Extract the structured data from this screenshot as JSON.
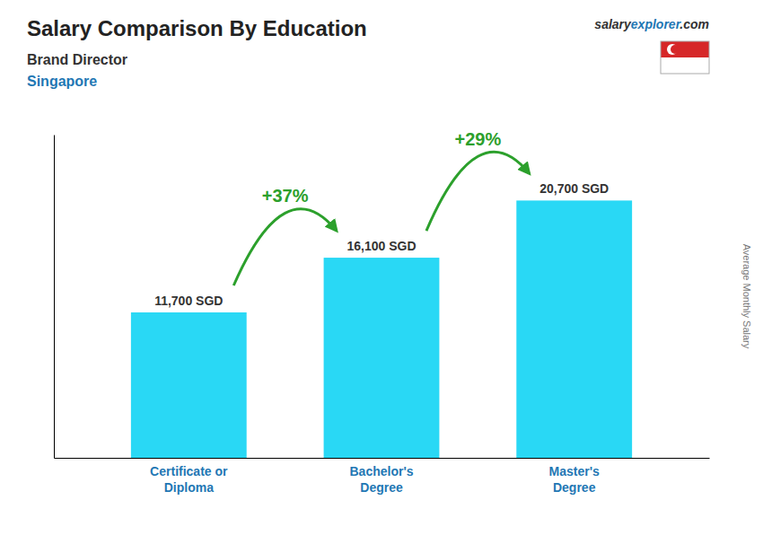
{
  "chart_data": {
    "type": "bar",
    "title": "Salary Comparison By Education",
    "subtitle": [
      "Brand Director",
      "Singapore"
    ],
    "source": [
      "salary",
      "explorer",
      ".com"
    ],
    "y_label": "Average Monthly Salary",
    "categories": [
      "Certificate or\nDiploma",
      "Bachelor's\nDegree",
      "Master's\nDegree"
    ],
    "values": [
      11700,
      16100,
      20700
    ],
    "value_labels": [
      "11,700 SGD",
      "16,100 SGD",
      "20,700 SGD"
    ],
    "annotations": [
      "+37%",
      "+29%"
    ],
    "color": "#29d8f5",
    "ylim": [
      0,
      26000
    ],
    "data_labels": true,
    "tick_labels": false,
    "grid": false
  }
}
